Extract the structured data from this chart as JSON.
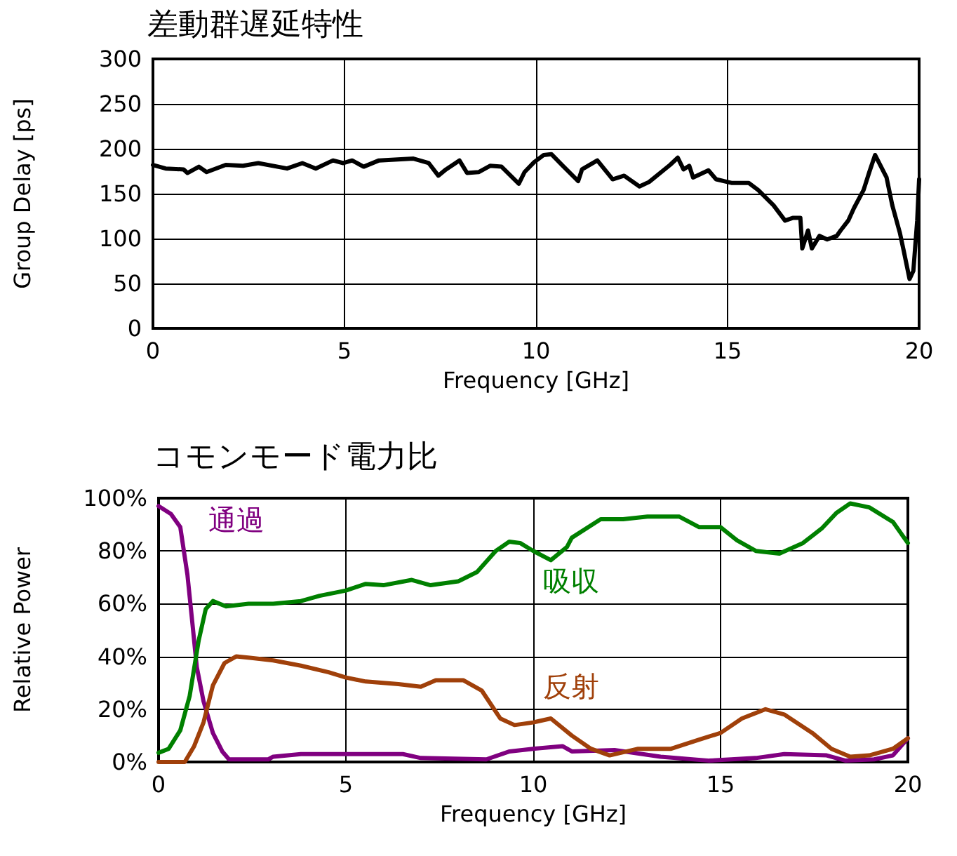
{
  "chart_data": [
    {
      "type": "line",
      "title": "差動群遅延特性",
      "xlabel": "Frequency [GHz]",
      "ylabel": "Group Delay [ps]",
      "series": [
        {
          "color": "#000000",
          "x": [
            0,
            0.33,
            0.8,
            0.9,
            1.2,
            1.4,
            1.9,
            2.35,
            2.75,
            3.5,
            3.9,
            4.25,
            4.7,
            4.97,
            5.2,
            5.5,
            5.9,
            6.8,
            7.2,
            7.45,
            7.65,
            8,
            8.2,
            8.5,
            8.8,
            9.1,
            9.55,
            9.7,
            9.95,
            10.2,
            10.4,
            10.7,
            11.1,
            11.2,
            11.6,
            12,
            12.3,
            12.7,
            12.95,
            13.5,
            13.7,
            13.85,
            14,
            14.1,
            14.5,
            14.7,
            15.1,
            15.55,
            15.8,
            16.2,
            16.5,
            16.7,
            16.9,
            16.95,
            17.1,
            17.2,
            17.4,
            17.6,
            17.85,
            17.95,
            18.15,
            18.3,
            18.55,
            18.7,
            18.85,
            19.15,
            19.3,
            19.5,
            19.6,
            19.75,
            19.85,
            19.95,
            20
          ],
          "values": [
            182,
            178,
            177,
            173,
            180,
            174,
            182,
            181,
            184,
            178,
            184,
            178,
            187,
            184,
            187,
            180,
            187,
            189,
            184,
            170,
            177,
            187,
            173,
            174,
            181,
            180,
            161,
            174,
            185,
            193,
            194,
            181,
            164,
            177,
            187,
            166,
            170,
            158,
            163,
            182,
            190,
            177,
            181,
            168,
            176,
            166,
            162,
            162,
            154,
            137,
            120,
            123,
            123,
            89,
            109,
            89,
            103,
            99,
            103,
            109,
            120,
            134,
            154,
            174,
            193,
            168,
            137,
            106,
            86,
            55,
            64,
            120,
            166
          ]
        }
      ],
      "xlim": [
        0,
        20
      ],
      "xticks": [
        0,
        5,
        10,
        15,
        20
      ],
      "ylim": [
        0,
        300
      ],
      "yticks": [
        0,
        50,
        100,
        150,
        200,
        250,
        300
      ],
      "grid": true,
      "legend": false,
      "marker": "none",
      "line_style": "solid"
    },
    {
      "type": "line",
      "title": "コモンモード電力比",
      "xlabel": "Frequency [GHz]",
      "ylabel": "Relative Power",
      "series": [
        {
          "name": "通過",
          "color": "#800080",
          "x": [
            0,
            0.33,
            0.58,
            0.77,
            0.9,
            1.02,
            1.2,
            1.45,
            1.7,
            1.88,
            2.93,
            3.06,
            3.8,
            6.52,
            7,
            8.75,
            9.37,
            10,
            10.78,
            11.03,
            12.17,
            13.4,
            14.7,
            15.94,
            16.7,
            17.83,
            18.34,
            19.1,
            19.6,
            20
          ],
          "values": [
            97,
            94,
            89,
            71,
            53,
            36,
            23,
            11,
            4,
            1,
            1,
            2,
            3,
            3,
            1.5,
            1,
            4,
            5,
            6,
            4,
            4.5,
            2,
            0.5,
            1.5,
            3,
            2.5,
            0.5,
            1,
            2.5,
            9
          ]
        },
        {
          "name": "吸収",
          "color": "#008000",
          "x": [
            0,
            0.27,
            0.58,
            0.83,
            1.07,
            1.26,
            1.45,
            1.8,
            2.4,
            3.06,
            3.8,
            4.3,
            5,
            5.53,
            6,
            6.76,
            7.26,
            8,
            8.5,
            9,
            9.36,
            9.65,
            10,
            10.47,
            10.9,
            11.03,
            11.8,
            12.4,
            13.05,
            13.9,
            14.43,
            15,
            15.44,
            15.94,
            16.57,
            17.2,
            17.7,
            18.1,
            18.46,
            18.97,
            19.6,
            19.85,
            20
          ],
          "values": [
            3.5,
            5,
            12,
            25,
            46,
            58,
            61,
            59,
            60,
            60,
            61,
            63,
            65,
            67.5,
            67,
            69,
            67,
            68.5,
            72,
            80,
            83.5,
            83,
            80,
            76.5,
            81.5,
            85,
            92,
            92,
            93,
            93,
            89,
            89,
            84,
            80,
            79,
            83,
            88.5,
            94.5,
            98,
            96.5,
            91,
            86,
            83
          ]
        },
        {
          "name": "反射",
          "color": "#a0400a",
          "x": [
            0,
            0.7,
            0.95,
            1.2,
            1.45,
            1.76,
            2.07,
            2.44,
            3.06,
            3.8,
            4.54,
            5,
            5.53,
            6.4,
            7,
            7.4,
            8.13,
            8.63,
            9.12,
            9.5,
            10,
            10.47,
            11.03,
            11.54,
            12.04,
            12.8,
            13.68,
            14.43,
            15,
            15.57,
            16.2,
            16.7,
            17.45,
            17.96,
            18.46,
            18.97,
            19.6,
            20
          ],
          "values": [
            0,
            0,
            6,
            15,
            29,
            37.5,
            40,
            39.5,
            38.5,
            36.5,
            34,
            32,
            30.5,
            29.5,
            28.5,
            31,
            31,
            27,
            16.5,
            14,
            15,
            16.5,
            10,
            5,
            2.5,
            5,
            5,
            8.5,
            11,
            16.5,
            20,
            18,
            11,
            5,
            2,
            2.5,
            5,
            9
          ]
        }
      ],
      "xlim": [
        0,
        20
      ],
      "xticks": [
        0,
        5,
        10,
        15,
        20
      ],
      "ylim": [
        0,
        100
      ],
      "yticks": [
        {
          "value": 0,
          "label": "0%"
        },
        {
          "value": 20,
          "label": "20%"
        },
        {
          "value": 40,
          "label": "40%"
        },
        {
          "value": 60,
          "label": "60%"
        },
        {
          "value": 80,
          "label": "80%"
        },
        {
          "value": 100,
          "label": "100%"
        }
      ],
      "grid": true,
      "legend": false,
      "marker": "none",
      "line_style": "solid"
    }
  ]
}
